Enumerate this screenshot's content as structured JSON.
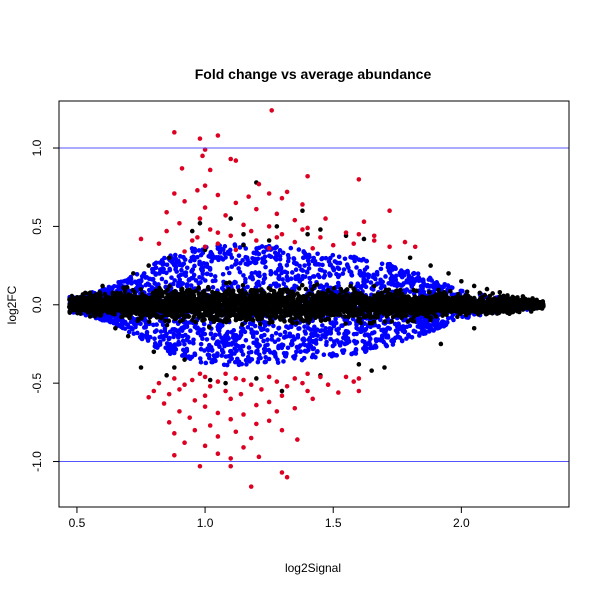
{
  "chart_data": {
    "type": "scatter",
    "title": "Fold change vs average abundance",
    "xlabel": "log2Signal",
    "ylabel": "log2FC",
    "xlim": [
      0.43,
      2.42
    ],
    "ylim": [
      -1.29,
      1.3
    ],
    "xticks": [
      {
        "value": 0.5,
        "label": "0.5"
      },
      {
        "value": 1.0,
        "label": "1.0"
      },
      {
        "value": 1.5,
        "label": "1.5"
      },
      {
        "value": 2.0,
        "label": "2.0"
      }
    ],
    "yticks": [
      {
        "value": -1.0,
        "label": "-1.0"
      },
      {
        "value": -0.5,
        "label": "-0.5"
      },
      {
        "value": 0.0,
        "label": "0.0"
      },
      {
        "value": 0.5,
        "label": "0.5"
      },
      {
        "value": 1.0,
        "label": "1.0"
      }
    ],
    "reference_lines": [
      {
        "axis": "y",
        "value": 1.0,
        "color": "#5555ff"
      },
      {
        "axis": "y",
        "value": -1.0,
        "color": "#5555ff"
      }
    ],
    "grid": false,
    "legend": "none",
    "colors": {
      "black": "#000000",
      "blue": "#0000ff",
      "red": "#dd0022"
    },
    "series": [
      {
        "color": "#dd0022",
        "points": [
          [
            0.88,
            1.1
          ],
          [
            0.98,
            1.06
          ],
          [
            1.05,
            1.08
          ],
          [
            1.26,
            1.24
          ],
          [
            1.0,
            0.99
          ],
          [
            0.99,
            0.95
          ],
          [
            1.1,
            0.93
          ],
          [
            1.12,
            0.92
          ],
          [
            0.91,
            0.87
          ],
          [
            1.02,
            0.86
          ],
          [
            1.4,
            0.82
          ],
          [
            1.6,
            0.8
          ],
          [
            1.21,
            0.77
          ],
          [
            1.0,
            0.76
          ],
          [
            0.97,
            0.73
          ],
          [
            1.32,
            0.72
          ],
          [
            1.25,
            0.71
          ],
          [
            0.88,
            0.71
          ],
          [
            1.05,
            0.7
          ],
          [
            1.17,
            0.69
          ],
          [
            1.3,
            0.68
          ],
          [
            0.92,
            0.66
          ],
          [
            1.12,
            0.65
          ],
          [
            1.38,
            0.64
          ],
          [
            1.0,
            0.62
          ],
          [
            1.2,
            0.61
          ],
          [
            1.72,
            0.6
          ],
          [
            0.85,
            0.59
          ],
          [
            1.28,
            0.58
          ],
          [
            1.08,
            0.57
          ],
          [
            0.98,
            0.55
          ],
          [
            1.47,
            0.55
          ],
          [
            1.35,
            0.54
          ],
          [
            1.62,
            0.53
          ],
          [
            0.9,
            0.52
          ],
          [
            1.15,
            0.51
          ],
          [
            1.25,
            0.5
          ],
          [
            1.4,
            0.49
          ],
          [
            1.02,
            0.48
          ],
          [
            0.85,
            0.47
          ],
          [
            1.55,
            0.46
          ],
          [
            1.6,
            0.45
          ],
          [
            1.3,
            0.45
          ],
          [
            1.1,
            0.44
          ],
          [
            1.66,
            0.44
          ],
          [
            1.45,
            0.43
          ],
          [
            0.75,
            0.42
          ],
          [
            0.95,
            0.41
          ],
          [
            1.2,
            0.41
          ],
          [
            1.35,
            0.4
          ],
          [
            1.05,
            0.39
          ],
          [
            0.82,
            0.39
          ],
          [
            1.5,
            0.38
          ],
          [
            1.72,
            0.37
          ],
          [
            1.82,
            0.37
          ],
          [
            1.0,
            0.37
          ],
          [
            1.25,
            0.36
          ],
          [
            1.42,
            0.36
          ],
          [
            1.12,
            0.35
          ],
          [
            0.92,
            0.34
          ],
          [
            1.78,
            0.4
          ],
          [
            1.58,
            0.39
          ],
          [
            1.66,
            0.41
          ],
          [
            1.05,
            0.46
          ],
          [
            1.18,
            0.47
          ],
          [
            1.28,
            0.43
          ],
          [
            0.97,
            0.43
          ],
          [
            1.38,
            0.48
          ],
          [
            0.88,
            -0.47
          ],
          [
            1.0,
            -0.46
          ],
          [
            1.12,
            -0.47
          ],
          [
            1.25,
            -0.46
          ],
          [
            1.35,
            -0.47
          ],
          [
            1.45,
            -0.46
          ],
          [
            1.6,
            -0.47
          ],
          [
            0.95,
            -0.48
          ],
          [
            1.05,
            -0.49
          ],
          [
            1.15,
            -0.48
          ],
          [
            1.28,
            -0.49
          ],
          [
            1.38,
            -0.5
          ],
          [
            0.82,
            -0.5
          ],
          [
            0.92,
            -0.51
          ],
          [
            1.02,
            -0.52
          ],
          [
            1.18,
            -0.51
          ],
          [
            1.32,
            -0.52
          ],
          [
            1.48,
            -0.51
          ],
          [
            0.9,
            -0.54
          ],
          [
            1.08,
            -0.55
          ],
          [
            1.22,
            -0.54
          ],
          [
            1.4,
            -0.55
          ],
          [
            0.86,
            -0.57
          ],
          [
            1.0,
            -0.58
          ],
          [
            1.14,
            -0.57
          ],
          [
            1.3,
            -0.58
          ],
          [
            1.52,
            -0.56
          ],
          [
            0.78,
            -0.59
          ],
          [
            0.96,
            -0.61
          ],
          [
            1.1,
            -0.6
          ],
          [
            1.25,
            -0.62
          ],
          [
            1.42,
            -0.6
          ],
          [
            0.84,
            -0.63
          ],
          [
            1.0,
            -0.65
          ],
          [
            1.2,
            -0.64
          ],
          [
            1.35,
            -0.66
          ],
          [
            0.9,
            -0.68
          ],
          [
            1.05,
            -0.69
          ],
          [
            1.15,
            -0.7
          ],
          [
            1.28,
            -0.68
          ],
          [
            0.94,
            -0.72
          ],
          [
            1.1,
            -0.73
          ],
          [
            1.25,
            -0.74
          ],
          [
            0.86,
            -0.75
          ],
          [
            1.02,
            -0.77
          ],
          [
            1.2,
            -0.76
          ],
          [
            0.96,
            -0.8
          ],
          [
            1.12,
            -0.81
          ],
          [
            1.3,
            -0.8
          ],
          [
            0.88,
            -0.82
          ],
          [
            1.05,
            -0.84
          ],
          [
            1.18,
            -0.85
          ],
          [
            1.36,
            -0.86
          ],
          [
            0.92,
            -0.88
          ],
          [
            1.0,
            -0.9
          ],
          [
            1.15,
            -0.91
          ],
          [
            0.88,
            -0.96
          ],
          [
            1.05,
            -0.95
          ],
          [
            1.1,
            -0.98
          ],
          [
            1.21,
            -0.97
          ],
          [
            0.98,
            -1.03
          ],
          [
            1.1,
            -1.03
          ],
          [
            1.3,
            -1.07
          ],
          [
            1.32,
            -1.1
          ],
          [
            1.18,
            -1.16
          ],
          [
            1.55,
            -0.46
          ],
          [
            1.58,
            -0.49
          ],
          [
            0.98,
            -0.44
          ],
          [
            1.08,
            -0.44
          ],
          [
            1.4,
            -0.44
          ],
          [
            0.8,
            -0.55
          ],
          [
            1.6,
            -0.55
          ]
        ]
      },
      {
        "color": "#000000",
        "points": [
          [
            0.72,
            0.2
          ],
          [
            0.78,
            0.25
          ],
          [
            0.86,
            0.3
          ],
          [
            1.0,
            0.35
          ],
          [
            1.15,
            0.38
          ],
          [
            0.8,
            -0.3
          ],
          [
            0.75,
            -0.4
          ],
          [
            0.85,
            -0.45
          ],
          [
            1.02,
            -0.48
          ],
          [
            0.92,
            -0.35
          ],
          [
            1.2,
            0.78
          ],
          [
            1.38,
            0.6
          ],
          [
            0.98,
            0.52
          ],
          [
            1.1,
            0.55
          ],
          [
            1.28,
            0.5
          ],
          [
            1.45,
            0.48
          ],
          [
            1.62,
            0.42
          ],
          [
            1.8,
            0.3
          ],
          [
            1.88,
            0.25
          ],
          [
            1.95,
            0.2
          ],
          [
            2.0,
            0.15
          ],
          [
            2.05,
            0.12
          ],
          [
            2.1,
            0.1
          ],
          [
            2.15,
            0.08
          ],
          [
            2.2,
            0.05
          ],
          [
            2.25,
            0.03
          ],
          [
            2.32,
            -0.01
          ],
          [
            2.28,
            0.02
          ],
          [
            2.18,
            0.06
          ],
          [
            1.7,
            -0.4
          ],
          [
            1.6,
            -0.38
          ],
          [
            1.3,
            -0.55
          ],
          [
            1.08,
            -0.5
          ],
          [
            0.7,
            -0.2
          ],
          [
            0.65,
            -0.15
          ],
          [
            0.6,
            0.12
          ],
          [
            1.92,
            -0.25
          ],
          [
            2.05,
            -0.15
          ],
          [
            1.4,
            0.45
          ],
          [
            1.55,
            0.44
          ],
          [
            0.95,
            0.47
          ],
          [
            1.15,
            0.45
          ],
          [
            1.25,
            0.41
          ],
          [
            1.65,
            -0.42
          ],
          [
            1.45,
            -0.45
          ],
          [
            1.2,
            -0.47
          ],
          [
            0.88,
            -0.4
          ]
        ]
      }
    ],
    "envelope": {
      "x_range": [
        0.47,
        2.32
      ],
      "blue_halfwidth_by_x": [
        [
          0.5,
          0.05
        ],
        [
          0.6,
          0.1
        ],
        [
          0.7,
          0.17
        ],
        [
          0.8,
          0.27
        ],
        [
          0.9,
          0.34
        ],
        [
          1.0,
          0.38
        ],
        [
          1.1,
          0.39
        ],
        [
          1.2,
          0.38
        ],
        [
          1.3,
          0.37
        ],
        [
          1.4,
          0.35
        ],
        [
          1.5,
          0.33
        ],
        [
          1.6,
          0.31
        ],
        [
          1.7,
          0.27
        ],
        [
          1.8,
          0.22
        ],
        [
          1.9,
          0.16
        ],
        [
          2.0,
          0.09
        ],
        [
          2.1,
          0.06
        ],
        [
          2.2,
          0.04
        ],
        [
          2.32,
          0.02
        ]
      ],
      "black_halfwidth_by_x": [
        [
          0.47,
          0.04
        ],
        [
          0.6,
          0.06
        ],
        [
          0.8,
          0.08
        ],
        [
          1.0,
          0.09
        ],
        [
          1.3,
          0.09
        ],
        [
          1.6,
          0.08
        ],
        [
          1.9,
          0.06
        ],
        [
          2.2,
          0.04
        ],
        [
          2.32,
          0.02
        ]
      ]
    }
  }
}
